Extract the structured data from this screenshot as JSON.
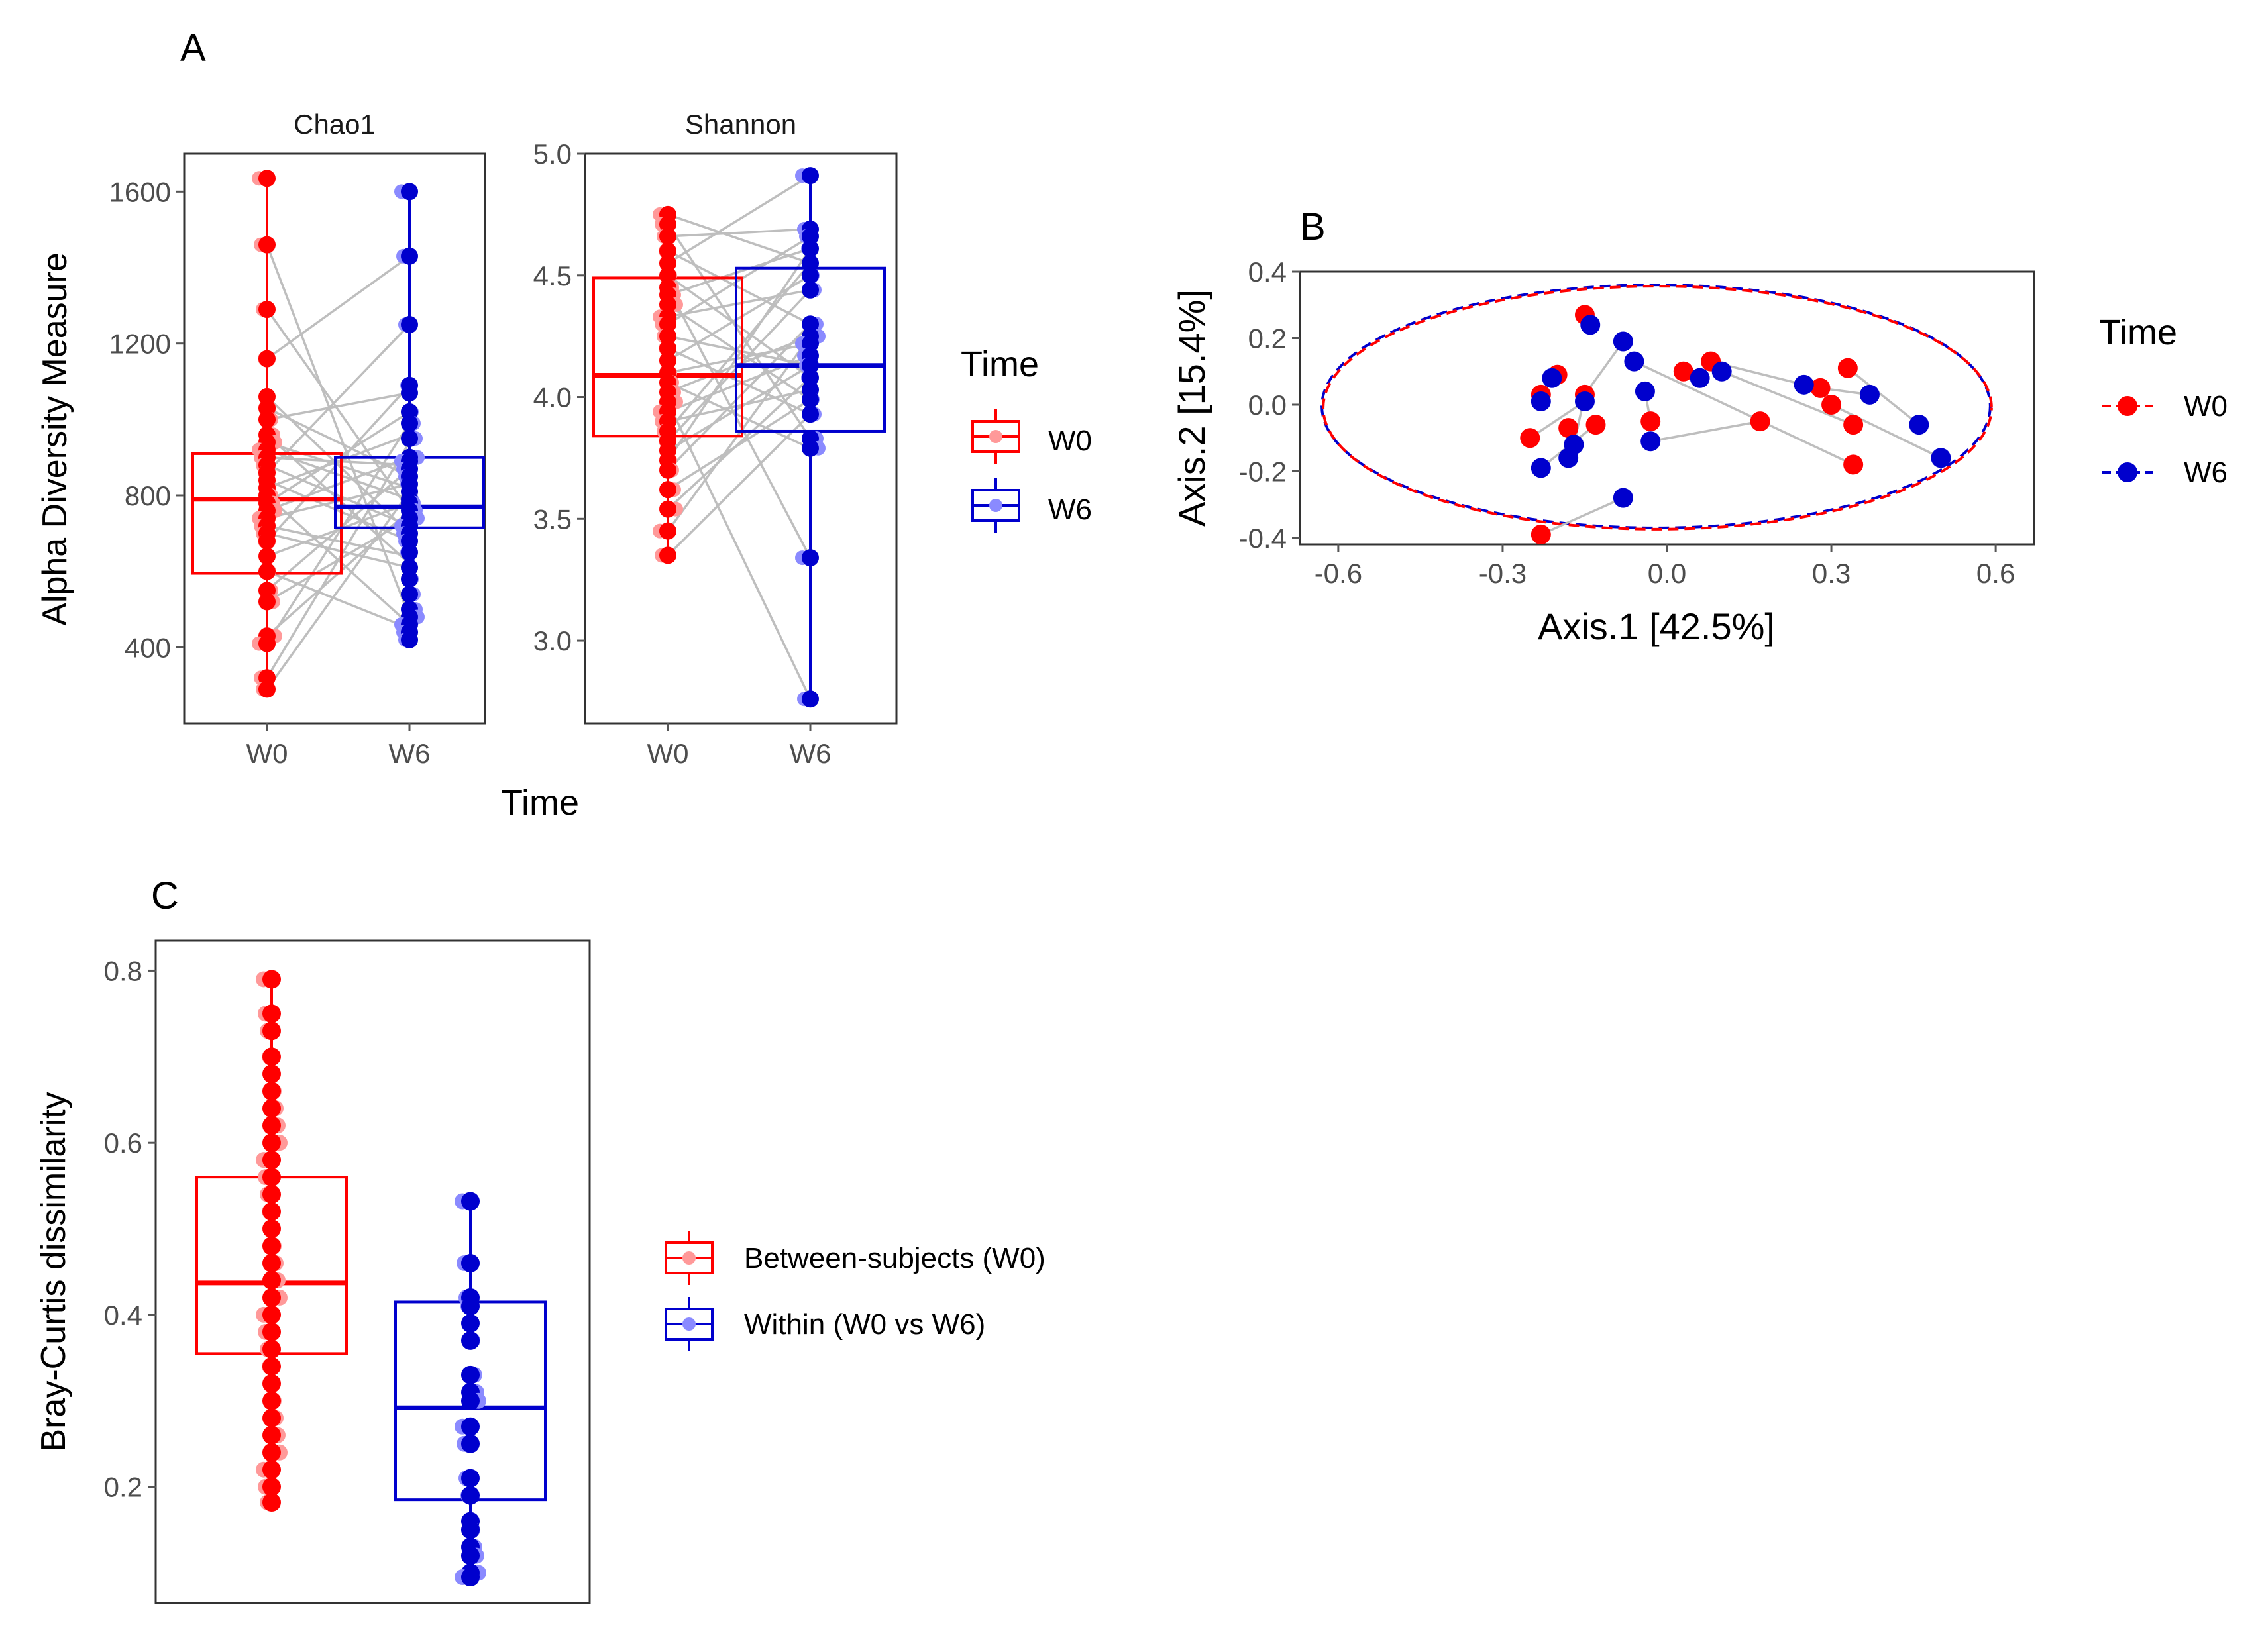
{
  "colors": {
    "w0": "#ff0000",
    "w6": "#0000cd",
    "w0_jitter": "#ff9999",
    "w6_jitter": "#8a8aff",
    "pair_line": "#bebebe",
    "axis": "#555555",
    "box_border": "#333333"
  },
  "panel_labels": {
    "a": "A",
    "b": "B",
    "c": "C"
  },
  "chart_data": [
    {
      "id": "A-chao1",
      "type": "box",
      "title": "Chao1",
      "ylabel": "Alpha Diversity Measure",
      "xlabel": "Time",
      "categories": [
        "W0",
        "W6"
      ],
      "ylim": [
        200,
        1700
      ],
      "yticks": [
        400,
        800,
        1200,
        1600
      ],
      "ytick_labels": [
        "400",
        "800",
        "1200",
        "1600"
      ],
      "boxes": [
        {
          "group": "W0",
          "q1": 595,
          "median": 790,
          "q3": 910,
          "whisker_low": 280,
          "whisker_high": 1635
        },
        {
          "group": "W6",
          "q1": 715,
          "median": 770,
          "q3": 900,
          "whisker_low": 410,
          "whisker_high": 1605
        }
      ],
      "series": [
        {
          "name": "W0",
          "values": [
            1635,
            1460,
            1290,
            1160,
            1060,
            1030,
            1000,
            960,
            940,
            920,
            900,
            880,
            860,
            840,
            820,
            800,
            780,
            760,
            740,
            720,
            700,
            680,
            640,
            600,
            550,
            520,
            430,
            410,
            320,
            290
          ]
        },
        {
          "name": "W6",
          "values": [
            1600,
            1430,
            1250,
            1090,
            1070,
            1020,
            990,
            950,
            900,
            890,
            870,
            850,
            830,
            810,
            790,
            780,
            760,
            740,
            720,
            700,
            680,
            650,
            610,
            580,
            540,
            500,
            480,
            460,
            440,
            420
          ]
        }
      ],
      "pairs": [
        [
          1460,
          480
        ],
        [
          1290,
          760
        ],
        [
          1160,
          1430
        ],
        [
          1060,
          700
        ],
        [
          1030,
          850
        ],
        [
          1000,
          1070
        ],
        [
          960,
          620
        ],
        [
          940,
          820
        ],
        [
          920,
          790
        ],
        [
          900,
          880
        ],
        [
          880,
          720
        ],
        [
          860,
          1250
        ],
        [
          840,
          680
        ],
        [
          820,
          960
        ],
        [
          800,
          460
        ],
        [
          780,
          1020
        ],
        [
          760,
          900
        ],
        [
          740,
          830
        ],
        [
          720,
          640
        ],
        [
          700,
          610
        ],
        [
          680,
          1090
        ],
        [
          640,
          780
        ],
        [
          600,
          450
        ],
        [
          550,
          870
        ],
        [
          520,
          740
        ],
        [
          430,
          760
        ],
        [
          410,
          990
        ],
        [
          320,
          940
        ],
        [
          290,
          810
        ]
      ]
    },
    {
      "id": "A-shannon",
      "type": "box",
      "title": "Shannon",
      "categories": [
        "W0",
        "W6"
      ],
      "ylim": [
        2.66,
        5.0
      ],
      "yticks": [
        3.0,
        3.5,
        4.0,
        4.5,
        5.0
      ],
      "ytick_labels": [
        "3.0",
        "3.5",
        "4.0",
        "4.5",
        "5.0"
      ],
      "boxes": [
        {
          "group": "W0",
          "q1": 3.84,
          "median": 4.09,
          "q3": 4.49,
          "whisker_low": 3.35,
          "whisker_high": 4.75
        },
        {
          "group": "W6",
          "q1": 3.86,
          "median": 4.13,
          "q3": 4.53,
          "whisker_low": 2.76,
          "whisker_high": 4.91
        }
      ],
      "series": [
        {
          "name": "W0",
          "values": [
            4.75,
            4.71,
            4.66,
            4.6,
            4.55,
            4.5,
            4.45,
            4.42,
            4.38,
            4.33,
            4.3,
            4.25,
            4.2,
            4.15,
            4.1,
            4.06,
            4.02,
            3.98,
            3.94,
            3.9,
            3.86,
            3.82,
            3.78,
            3.74,
            3.7,
            3.62,
            3.54,
            3.45,
            3.35
          ]
        },
        {
          "name": "W6",
          "values": [
            4.91,
            4.69,
            4.66,
            4.61,
            4.55,
            4.5,
            4.44,
            4.3,
            4.25,
            4.22,
            4.17,
            4.13,
            4.08,
            4.03,
            3.99,
            3.93,
            3.83,
            3.79,
            3.34,
            2.76
          ]
        }
      ],
      "pairs": [
        [
          4.75,
          4.55
        ],
        [
          4.71,
          3.83
        ],
        [
          4.66,
          4.69
        ],
        [
          4.6,
          4.3
        ],
        [
          4.55,
          4.91
        ],
        [
          4.5,
          4.08
        ],
        [
          4.45,
          3.34
        ],
        [
          4.42,
          4.61
        ],
        [
          4.38,
          3.99
        ],
        [
          4.33,
          4.44
        ],
        [
          4.3,
          4.66
        ],
        [
          4.25,
          4.13
        ],
        [
          4.2,
          3.93
        ],
        [
          4.15,
          4.5
        ],
        [
          4.1,
          4.22
        ],
        [
          4.06,
          3.79
        ],
        [
          4.02,
          4.25
        ],
        [
          3.98,
          2.76
        ],
        [
          3.94,
          4.17
        ],
        [
          3.9,
          4.03
        ],
        [
          3.86,
          4.55
        ],
        [
          3.82,
          4.44
        ],
        [
          3.78,
          4.13
        ],
        [
          3.74,
          4.61
        ],
        [
          3.7,
          4.3
        ],
        [
          3.62,
          3.99
        ],
        [
          3.54,
          4.08
        ],
        [
          3.45,
          4.25
        ],
        [
          3.35,
          3.93
        ]
      ]
    },
    {
      "id": "B",
      "type": "scatter",
      "xlabel": "Axis.1   [42.5%]",
      "ylabel": "Axis.2   [15.4%]",
      "xlim": [
        -0.67,
        0.67
      ],
      "ylim": [
        -0.42,
        0.4
      ],
      "xticks": [
        -0.6,
        -0.3,
        0.0,
        0.3,
        0.6
      ],
      "xtick_labels": [
        "-0.6",
        "-0.3",
        "0.0",
        "0.3",
        "0.6"
      ],
      "yticks": [
        -0.4,
        -0.2,
        0.0,
        0.2,
        0.4
      ],
      "ytick_labels": [
        "-0.4",
        "-0.2",
        "0.0",
        "0.2",
        "0.4"
      ],
      "ellipse": {
        "cx": -0.02,
        "cy": -0.005,
        "rx": 0.61,
        "ry": 0.365
      },
      "series": [
        {
          "name": "W0",
          "points": [
            [
              -0.15,
              0.27
            ],
            [
              -0.2,
              0.09
            ],
            [
              -0.23,
              0.03
            ],
            [
              -0.25,
              -0.1
            ],
            [
              -0.18,
              -0.07
            ],
            [
              -0.15,
              0.03
            ],
            [
              -0.13,
              -0.06
            ],
            [
              -0.03,
              -0.05
            ],
            [
              0.03,
              0.1
            ],
            [
              0.08,
              0.13
            ],
            [
              0.17,
              -0.05
            ],
            [
              0.28,
              0.05
            ],
            [
              0.33,
              0.11
            ],
            [
              0.3,
              0.0
            ],
            [
              0.34,
              -0.06
            ],
            [
              0.34,
              -0.18
            ],
            [
              -0.23,
              -0.39
            ]
          ]
        },
        {
          "name": "W6",
          "points": [
            [
              -0.14,
              0.24
            ],
            [
              -0.08,
              0.19
            ],
            [
              -0.06,
              0.13
            ],
            [
              -0.21,
              0.08
            ],
            [
              -0.23,
              0.01
            ],
            [
              -0.15,
              0.01
            ],
            [
              -0.23,
              -0.19
            ],
            [
              -0.17,
              -0.12
            ],
            [
              -0.18,
              -0.16
            ],
            [
              -0.04,
              0.04
            ],
            [
              0.1,
              0.1
            ],
            [
              0.06,
              0.08
            ],
            [
              0.25,
              0.06
            ],
            [
              0.37,
              0.03
            ],
            [
              0.46,
              -0.06
            ],
            [
              0.5,
              -0.16
            ],
            [
              -0.03,
              -0.11
            ],
            [
              -0.08,
              -0.28
            ]
          ]
        }
      ],
      "pairs": [
        [
          [
            -0.15,
            0.27
          ],
          [
            -0.14,
            0.24
          ]
        ],
        [
          [
            -0.2,
            0.09
          ],
          [
            -0.21,
            0.08
          ]
        ],
        [
          [
            -0.23,
            0.03
          ],
          [
            -0.23,
            0.01
          ]
        ],
        [
          [
            -0.25,
            -0.1
          ],
          [
            -0.15,
            0.01
          ]
        ],
        [
          [
            -0.18,
            -0.07
          ],
          [
            -0.18,
            -0.16
          ]
        ],
        [
          [
            -0.15,
            0.03
          ],
          [
            -0.17,
            -0.12
          ]
        ],
        [
          [
            -0.13,
            -0.06
          ],
          [
            -0.23,
            -0.19
          ]
        ],
        [
          [
            -0.03,
            -0.05
          ],
          [
            -0.04,
            0.04
          ]
        ],
        [
          [
            0.03,
            0.1
          ],
          [
            0.06,
            0.08
          ]
        ],
        [
          [
            0.08,
            0.13
          ],
          [
            0.25,
            0.06
          ]
        ],
        [
          [
            0.17,
            -0.05
          ],
          [
            -0.03,
            -0.11
          ]
        ],
        [
          [
            0.28,
            0.05
          ],
          [
            0.37,
            0.03
          ]
        ],
        [
          [
            0.33,
            0.11
          ],
          [
            0.46,
            -0.06
          ]
        ],
        [
          [
            0.3,
            0.0
          ],
          [
            0.5,
            -0.16
          ]
        ],
        [
          [
            0.34,
            -0.06
          ],
          [
            0.1,
            0.1
          ]
        ],
        [
          [
            0.34,
            -0.18
          ],
          [
            -0.06,
            0.13
          ]
        ],
        [
          [
            -0.23,
            -0.39
          ],
          [
            -0.08,
            -0.28
          ]
        ],
        [
          [
            -0.15,
            0.03
          ],
          [
            -0.08,
            0.19
          ]
        ]
      ]
    },
    {
      "id": "C",
      "type": "box",
      "ylabel": "Bray-Curtis dissimilarity",
      "ylim": [
        0.065,
        0.835
      ],
      "yticks": [
        0.2,
        0.4,
        0.6,
        0.8
      ],
      "ytick_labels": [
        "0.2",
        "0.4",
        "0.6",
        "0.8"
      ],
      "boxes": [
        {
          "group": "Between-subjects (W0)",
          "q1": 0.355,
          "median": 0.437,
          "q3": 0.56,
          "whisker_low": 0.182,
          "whisker_high": 0.79
        },
        {
          "group": "Within (W0 vs W6)",
          "q1": 0.185,
          "median": 0.292,
          "q3": 0.415,
          "whisker_low": 0.095,
          "whisker_high": 0.532
        }
      ],
      "series": [
        {
          "name": "Between-subjects (W0)",
          "values": [
            0.79,
            0.75,
            0.73,
            0.7,
            0.68,
            0.66,
            0.64,
            0.62,
            0.6,
            0.58,
            0.56,
            0.54,
            0.52,
            0.5,
            0.48,
            0.46,
            0.44,
            0.42,
            0.4,
            0.38,
            0.36,
            0.34,
            0.32,
            0.3,
            0.28,
            0.26,
            0.24,
            0.22,
            0.2,
            0.182
          ]
        },
        {
          "name": "Within (W0 vs W6)",
          "values": [
            0.532,
            0.46,
            0.42,
            0.41,
            0.39,
            0.37,
            0.33,
            0.31,
            0.3,
            0.27,
            0.25,
            0.21,
            0.19,
            0.16,
            0.15,
            0.13,
            0.12,
            0.1,
            0.095
          ]
        }
      ]
    }
  ],
  "legends": {
    "a": {
      "title": "Time",
      "items": [
        "W0",
        "W6"
      ]
    },
    "b": {
      "title": "Time",
      "items": [
        "W0",
        "W6"
      ]
    },
    "c": {
      "items": [
        "Between-subjects (W0)",
        "Within (W0 vs W6)"
      ]
    }
  }
}
